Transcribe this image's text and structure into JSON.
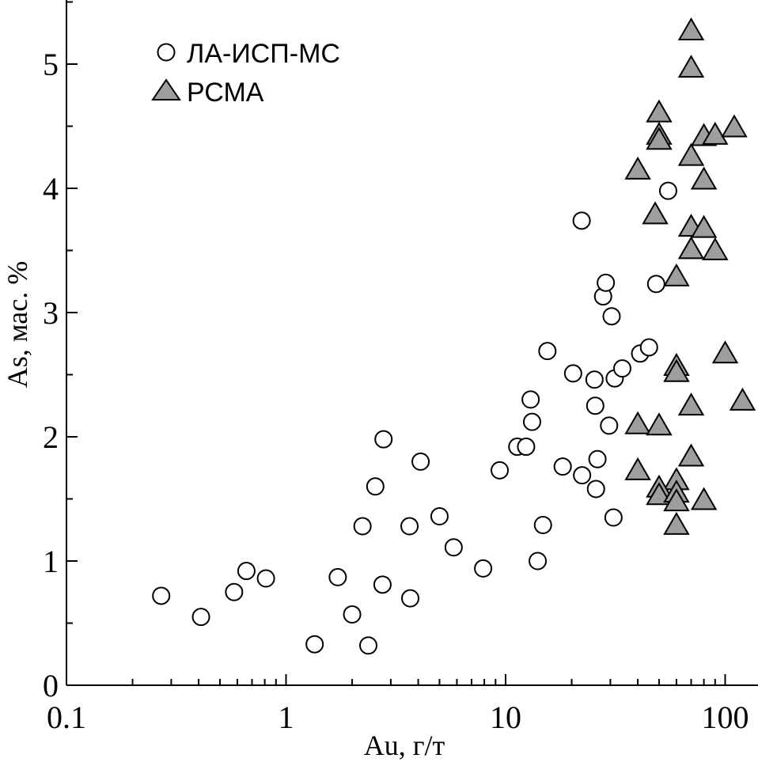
{
  "chart_data": {
    "type": "scatter",
    "xlabel": "Au, г/т",
    "ylabel": "As, мас. %",
    "x_scale": "log",
    "xlim": [
      0.1,
      150
    ],
    "ylim": [
      0,
      5.5
    ],
    "x_ticks": [
      {
        "value": 0.1,
        "label": "0.1"
      },
      {
        "value": 1,
        "label": "1"
      },
      {
        "value": 10,
        "label": "10"
      },
      {
        "value": 100,
        "label": "100"
      }
    ],
    "y_ticks": [
      {
        "value": 0,
        "label": "0"
      },
      {
        "value": 1,
        "label": "1"
      },
      {
        "value": 2,
        "label": "2"
      },
      {
        "value": 3,
        "label": "3"
      },
      {
        "value": 4,
        "label": "4"
      },
      {
        "value": 5,
        "label": "5"
      }
    ],
    "legend_position": "top-left",
    "series": [
      {
        "name": "ЛА-ИСП-МС",
        "marker": "circle-open",
        "color": "#ffffff",
        "points": [
          {
            "x": 0.27,
            "y": 0.72
          },
          {
            "x": 0.41,
            "y": 0.55
          },
          {
            "x": 0.58,
            "y": 0.75
          },
          {
            "x": 0.66,
            "y": 0.92
          },
          {
            "x": 0.81,
            "y": 0.86
          },
          {
            "x": 1.35,
            "y": 0.33
          },
          {
            "x": 1.72,
            "y": 0.87
          },
          {
            "x": 2.0,
            "y": 0.57
          },
          {
            "x": 2.23,
            "y": 1.28
          },
          {
            "x": 2.37,
            "y": 0.32
          },
          {
            "x": 2.55,
            "y": 1.6
          },
          {
            "x": 2.75,
            "y": 0.81
          },
          {
            "x": 2.78,
            "y": 1.98
          },
          {
            "x": 3.65,
            "y": 1.28
          },
          {
            "x": 3.68,
            "y": 0.7
          },
          {
            "x": 4.1,
            "y": 1.8
          },
          {
            "x": 5.0,
            "y": 1.36
          },
          {
            "x": 5.8,
            "y": 1.11
          },
          {
            "x": 7.9,
            "y": 0.94
          },
          {
            "x": 9.4,
            "y": 1.73
          },
          {
            "x": 11.3,
            "y": 1.92
          },
          {
            "x": 12.4,
            "y": 1.92
          },
          {
            "x": 13.0,
            "y": 2.3
          },
          {
            "x": 13.2,
            "y": 2.12
          },
          {
            "x": 14.0,
            "y": 1.0
          },
          {
            "x": 14.8,
            "y": 1.29
          },
          {
            "x": 15.5,
            "y": 2.69
          },
          {
            "x": 18.2,
            "y": 1.76
          },
          {
            "x": 20.3,
            "y": 2.51
          },
          {
            "x": 22.2,
            "y": 3.74
          },
          {
            "x": 22.3,
            "y": 1.69
          },
          {
            "x": 25.4,
            "y": 2.46
          },
          {
            "x": 25.6,
            "y": 2.25
          },
          {
            "x": 25.8,
            "y": 1.58
          },
          {
            "x": 26.2,
            "y": 1.82
          },
          {
            "x": 27.8,
            "y": 3.13
          },
          {
            "x": 28.6,
            "y": 3.24
          },
          {
            "x": 29.6,
            "y": 2.09
          },
          {
            "x": 30.4,
            "y": 2.97
          },
          {
            "x": 31.0,
            "y": 1.35
          },
          {
            "x": 31.4,
            "y": 2.47
          },
          {
            "x": 34.0,
            "y": 2.55
          },
          {
            "x": 41.0,
            "y": 2.67
          },
          {
            "x": 45.0,
            "y": 2.72
          },
          {
            "x": 48.5,
            "y": 3.23
          },
          {
            "x": 55.0,
            "y": 3.98
          }
        ]
      },
      {
        "name": "РСМА",
        "marker": "triangle-filled",
        "color": "#9e9e9e",
        "points": [
          {
            "x": 70,
            "y": 5.28
          },
          {
            "x": 70,
            "y": 4.98
          },
          {
            "x": 50,
            "y": 4.62
          },
          {
            "x": 50,
            "y": 4.44
          },
          {
            "x": 50,
            "y": 4.4
          },
          {
            "x": 80,
            "y": 4.43
          },
          {
            "x": 90,
            "y": 4.44
          },
          {
            "x": 110,
            "y": 4.5
          },
          {
            "x": 70,
            "y": 4.27
          },
          {
            "x": 40,
            "y": 4.16
          },
          {
            "x": 80,
            "y": 4.08
          },
          {
            "x": 48,
            "y": 3.8
          },
          {
            "x": 70,
            "y": 3.7
          },
          {
            "x": 80,
            "y": 3.69
          },
          {
            "x": 70,
            "y": 3.52
          },
          {
            "x": 90,
            "y": 3.51
          },
          {
            "x": 60,
            "y": 3.3
          },
          {
            "x": 100,
            "y": 2.68
          },
          {
            "x": 60,
            "y": 2.58
          },
          {
            "x": 60,
            "y": 2.53
          },
          {
            "x": 120,
            "y": 2.3
          },
          {
            "x": 70,
            "y": 2.26
          },
          {
            "x": 40,
            "y": 2.11
          },
          {
            "x": 50,
            "y": 2.1
          },
          {
            "x": 70,
            "y": 1.85
          },
          {
            "x": 40,
            "y": 1.74
          },
          {
            "x": 60,
            "y": 1.66
          },
          {
            "x": 50,
            "y": 1.6
          },
          {
            "x": 50,
            "y": 1.54
          },
          {
            "x": 60,
            "y": 1.56
          },
          {
            "x": 60,
            "y": 1.49
          },
          {
            "x": 80,
            "y": 1.5
          },
          {
            "x": 60,
            "y": 1.3
          }
        ]
      }
    ]
  }
}
